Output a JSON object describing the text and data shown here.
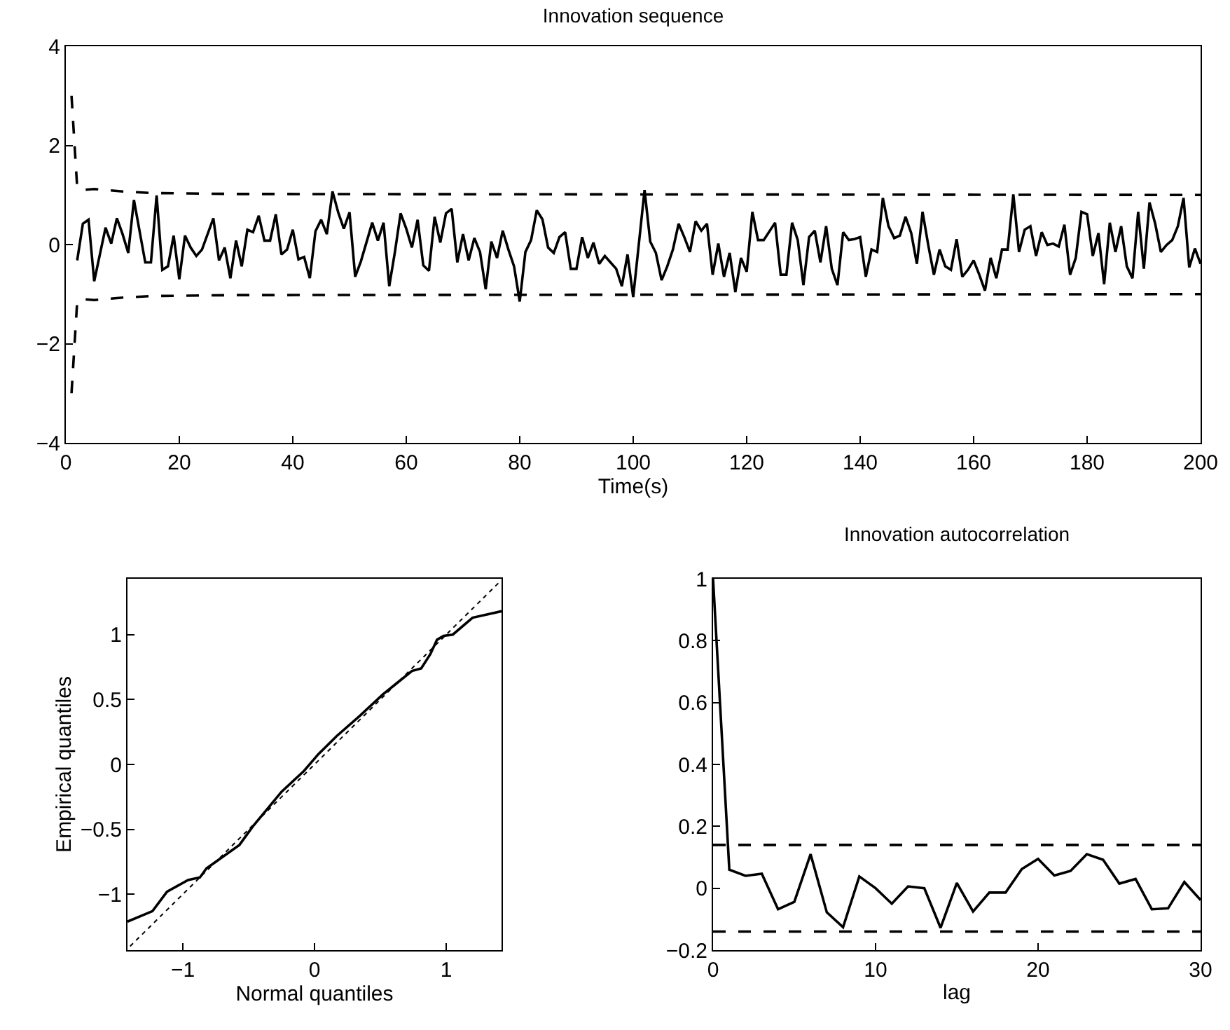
{
  "chart_data": [
    {
      "type": "line",
      "title": "Innovation sequence",
      "xlabel": "Time(s)",
      "xlim": [
        0,
        200
      ],
      "ylim": [
        -4,
        4
      ],
      "xticks": [
        0,
        20,
        40,
        60,
        80,
        100,
        120,
        140,
        160,
        180,
        200
      ],
      "yticks": [
        -4,
        -2,
        0,
        2,
        4
      ],
      "series": [
        {
          "color": "#000000",
          "line_style": "solid",
          "x": [
            2,
            3,
            4,
            5,
            7,
            8,
            9,
            10,
            11,
            12,
            14,
            15,
            16,
            17,
            18,
            19,
            20,
            21,
            22,
            23,
            24,
            26,
            27,
            28,
            29,
            30,
            31,
            32,
            33,
            34,
            35,
            36,
            37,
            38,
            39,
            40,
            41,
            42,
            43,
            44,
            45,
            46,
            47,
            48,
            49,
            50,
            51,
            52,
            54,
            55,
            56,
            57,
            58,
            59,
            60,
            61,
            62,
            63,
            64,
            65,
            66,
            67,
            68,
            69,
            70,
            71,
            72,
            73,
            74,
            75,
            76,
            77,
            78,
            79,
            80,
            81,
            82,
            83,
            84,
            85,
            86,
            87,
            88,
            89,
            90,
            91,
            92,
            93,
            94,
            95,
            96,
            97,
            98,
            99,
            100,
            102,
            103,
            104,
            105,
            106,
            107,
            108,
            109,
            110,
            111,
            112,
            113,
            114,
            115,
            116,
            117,
            118,
            119,
            120,
            121,
            122,
            123,
            125,
            126,
            127,
            128,
            129,
            130,
            131,
            132,
            133,
            134,
            135,
            136,
            137,
            138,
            139,
            140,
            141,
            142,
            143,
            144,
            145,
            146,
            147,
            148,
            149,
            150,
            151,
            152,
            153,
            154,
            155,
            156,
            157,
            158,
            159,
            160,
            161,
            162,
            163,
            164,
            165,
            166,
            167,
            168,
            169,
            170,
            171,
            172,
            173,
            174,
            175,
            176,
            177,
            178,
            179,
            180,
            181,
            182,
            183,
            184,
            185,
            186,
            187,
            188,
            189,
            190,
            191,
            192,
            193,
            194,
            195,
            196,
            197,
            198,
            199,
            200
          ],
          "values": [
            -0.32,
            0.42,
            0.5,
            -0.74,
            0.34,
            0.02,
            0.53,
            0.21,
            -0.17,
            0.9,
            -0.36,
            -0.36,
            0.99,
            -0.51,
            -0.44,
            0.18,
            -0.7,
            0.18,
            -0.06,
            -0.23,
            -0.1,
            0.53,
            -0.32,
            -0.06,
            -0.68,
            0.08,
            -0.44,
            0.3,
            0.25,
            0.58,
            0.08,
            0.08,
            0.61,
            -0.2,
            -0.1,
            0.3,
            -0.3,
            -0.25,
            -0.68,
            0.27,
            0.5,
            0.21,
            1.07,
            0.65,
            0.32,
            0.65,
            -0.65,
            -0.34,
            0.44,
            0.08,
            0.44,
            -0.84,
            -0.15,
            0.63,
            0.32,
            -0.06,
            0.5,
            -0.42,
            -0.53,
            0.56,
            0.04,
            0.63,
            0.72,
            -0.36,
            0.21,
            -0.32,
            0.13,
            -0.15,
            -0.9,
            0.06,
            -0.27,
            0.28,
            -0.1,
            -0.44,
            -1.15,
            -0.15,
            0.09,
            0.69,
            0.51,
            -0.06,
            -0.17,
            0.15,
            0.25,
            -0.49,
            -0.49,
            0.15,
            -0.27,
            0.04,
            -0.39,
            -0.23,
            -0.36,
            -0.49,
            -0.84,
            -0.2,
            -1.06,
            1.1,
            0.06,
            -0.17,
            -0.72,
            -0.44,
            -0.1,
            0.42,
            0.15,
            -0.15,
            0.47,
            0.28,
            0.42,
            -0.61,
            0.02,
            -0.65,
            -0.17,
            -0.96,
            -0.27,
            -0.55,
            0.66,
            0.09,
            0.09,
            0.44,
            -0.61,
            -0.61,
            0.44,
            0.09,
            -0.82,
            0.15,
            0.28,
            -0.36,
            0.37,
            -0.49,
            -0.82,
            0.25,
            0.09,
            0.11,
            0.15,
            -0.65,
            -0.1,
            -0.15,
            0.94,
            0.37,
            0.13,
            0.18,
            0.56,
            0.23,
            -0.39,
            0.66,
            -0.01,
            -0.61,
            -0.1,
            -0.44,
            -0.51,
            0.11,
            -0.65,
            -0.51,
            -0.32,
            -0.61,
            -0.93,
            -0.27,
            -0.68,
            -0.1,
            -0.1,
            1.01,
            -0.15,
            0.3,
            0.37,
            -0.23,
            0.25,
            -0.01,
            0.02,
            -0.04,
            0.4,
            -0.61,
            -0.27,
            0.66,
            0.61,
            -0.23,
            0.23,
            -0.8,
            0.44,
            -0.15,
            0.37,
            -0.44,
            -0.68,
            0.66,
            -0.49,
            0.85,
            0.42,
            -0.15,
            -0.01,
            0.09,
            0.37,
            0.94,
            -0.46,
            -0.08,
            -0.39
          ]
        },
        {
          "color": "#000000",
          "line_style": "dashed",
          "x": [
            1,
            2,
            3,
            5,
            10,
            15,
            30,
            200
          ],
          "values": [
            3.0,
            1.15,
            1.1,
            1.12,
            1.07,
            1.04,
            1.02,
            1.0
          ]
        },
        {
          "color": "#000000",
          "line_style": "dashed",
          "x": [
            1,
            2,
            3,
            5,
            10,
            15,
            30,
            200
          ],
          "values": [
            -3.0,
            -1.15,
            -1.1,
            -1.12,
            -1.07,
            -1.04,
            -1.02,
            -1.0
          ]
        }
      ]
    },
    {
      "type": "line",
      "xlabel": "Normal quantiles",
      "ylabel": "Empirical quantiles",
      "xlim": [
        -1.42,
        1.42
      ],
      "ylim": [
        -1.43,
        1.43
      ],
      "xticks": [
        -1,
        0,
        1
      ],
      "yticks": [
        -1,
        -0.5,
        0,
        0.5,
        1
      ],
      "series": [
        {
          "color": "#000000",
          "line_style": "solid",
          "x": [
            -1.42,
            -1.23,
            -1.12,
            -0.96,
            -0.87,
            -0.82,
            -0.75,
            -0.57,
            -0.47,
            -0.25,
            -0.08,
            0.03,
            0.17,
            0.35,
            0.52,
            0.63,
            0.74,
            0.81,
            0.88,
            0.93,
            0.98,
            1.05,
            1.2,
            1.42
          ],
          "values": [
            -1.21,
            -1.13,
            -0.98,
            -0.89,
            -0.87,
            -0.8,
            -0.75,
            -0.62,
            -0.48,
            -0.21,
            -0.05,
            0.08,
            0.22,
            0.38,
            0.54,
            0.63,
            0.72,
            0.74,
            0.85,
            0.96,
            0.99,
            1.0,
            1.13,
            1.18
          ]
        },
        {
          "color": "#000000",
          "line_style": "dotted",
          "x": [
            -1.4,
            1.4
          ],
          "values": [
            -1.4,
            1.4
          ]
        }
      ]
    },
    {
      "type": "line",
      "title": "Innovation autocorrelation",
      "xlabel": "lag",
      "xlim": [
        0,
        30
      ],
      "ylim": [
        -0.2,
        1
      ],
      "xticks": [
        0,
        10,
        20,
        30
      ],
      "yticks": [
        -0.2,
        0,
        0.2,
        0.4,
        0.6,
        0.8,
        1
      ],
      "series": [
        {
          "color": "#000000",
          "line_style": "solid",
          "x": [
            0,
            1,
            2,
            3,
            4,
            5,
            6,
            7,
            8,
            9,
            10,
            11,
            12,
            13,
            14,
            15,
            16,
            17,
            18,
            19,
            20,
            21,
            22,
            23,
            24,
            25,
            26,
            27,
            28,
            29,
            30
          ],
          "values": [
            1.0,
            0.06,
            0.04,
            0.047,
            -0.068,
            -0.044,
            0.11,
            -0.078,
            -0.126,
            0.038,
            0.0,
            -0.05,
            0.006,
            0.0,
            -0.128,
            0.017,
            -0.075,
            -0.014,
            -0.014,
            0.062,
            0.095,
            0.041,
            0.056,
            0.11,
            0.092,
            0.015,
            0.03,
            -0.068,
            -0.065,
            0.02,
            -0.038
          ]
        }
      ],
      "ref_lines": [
        {
          "axis": "y",
          "value": 0.14,
          "line_style": "dashed",
          "color": "#000000"
        },
        {
          "axis": "y",
          "value": -0.14,
          "line_style": "dashed",
          "color": "#000000"
        }
      ]
    }
  ]
}
